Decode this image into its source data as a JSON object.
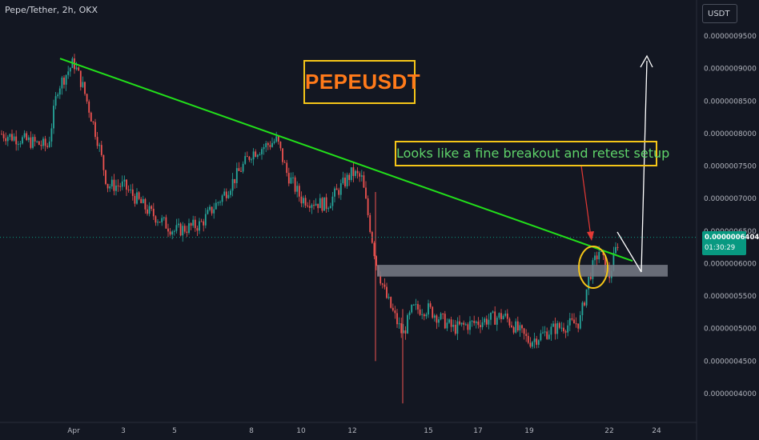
{
  "header": {
    "symbol_title": "Pepe/Tether, 2h, OKX",
    "currency_button": "USDT"
  },
  "annotations": {
    "title": "PEPEUSDT",
    "note": "Looks like a fine breakout and retest setup"
  },
  "last_price": {
    "value": "0.0000006404",
    "countdown": "01:30:29"
  },
  "colors": {
    "background": "#131722",
    "up_candle": "#26a69a",
    "down_candle": "#ef5350",
    "trendline": "#22e01a",
    "support_zone": "#787b86",
    "circle": "#f5c518",
    "arrow_red": "#e53935",
    "arrow_white": "#ffffff"
  },
  "chart_data": {
    "type": "candlestick",
    "title": "Pepe/Tether, 2h, OKX",
    "y_unit": "USDT",
    "ylim": [
      3.8e-07,
      9.8e-07
    ],
    "y_ticks": [
      "0.0000009500",
      "0.0000009000",
      "0.0000008500",
      "0.0000008000",
      "0.0000007500",
      "0.0000007000",
      "0.0000006500",
      "0.0000006000",
      "0.0000005500",
      "0.0000005000",
      "0.0000004500",
      "0.0000004000"
    ],
    "x_ticks": [
      "Apr",
      "3",
      "5",
      "8",
      "10",
      "12",
      "15",
      "17",
      "19",
      "22",
      "24"
    ],
    "trendline": {
      "from": [
        "Mar 31",
        9.153e-07
      ],
      "to": [
        "Apr 23",
        6.04e-07
      ]
    },
    "support_zone": [
      5.8e-07,
      5.98e-07
    ],
    "target_arrow": {
      "from": 5.99e-07,
      "to": 9.2e-07
    },
    "path_points": [
      [
        "Mar 30",
        8e-07
      ],
      [
        "Mar 31",
        7.8e-07
      ],
      [
        "Mar 31",
        8.7e-07
      ],
      [
        "Apr 1",
        9.1e-07
      ],
      [
        "Apr 1",
        8.7e-07
      ],
      [
        "Apr 2",
        7.9e-07
      ],
      [
        "Apr 2",
        7.2e-07
      ],
      [
        "Apr 3",
        7.2e-07
      ],
      [
        "Apr 4",
        6.8e-07
      ],
      [
        "Apr 5",
        6.5e-07
      ],
      [
        "Apr 6",
        6.6e-07
      ],
      [
        "Apr 7",
        7.1e-07
      ],
      [
        "Apr 8",
        7.7e-07
      ],
      [
        "Apr 9",
        7.9e-07
      ],
      [
        "Apr 9",
        7.4e-07
      ],
      [
        "Apr 10",
        7e-07
      ],
      [
        "Apr 11",
        6.9e-07
      ],
      [
        "Apr 12",
        7.4e-07
      ],
      [
        "Apr 12",
        7.3e-07
      ],
      [
        "Apr 13",
        6e-07
      ],
      [
        "Apr 13",
        5.5e-07
      ],
      [
        "Apr 14",
        4.9e-07
      ],
      [
        "Apr 14",
        5.3e-07
      ],
      [
        "Apr 15",
        5.3e-07
      ],
      [
        "Apr 16",
        5e-07
      ],
      [
        "Apr 17",
        5.1e-07
      ],
      [
        "Apr 18",
        5.2e-07
      ],
      [
        "Apr 19",
        4.8e-07
      ],
      [
        "Apr 20",
        5e-07
      ],
      [
        "Apr 21",
        5.1e-07
      ],
      [
        "Apr 21",
        5.8e-07
      ],
      [
        "Apr 21",
        6.2e-07
      ],
      [
        "Apr 22",
        5.8e-07
      ],
      [
        "Apr 22",
        6.4e-07
      ]
    ]
  }
}
